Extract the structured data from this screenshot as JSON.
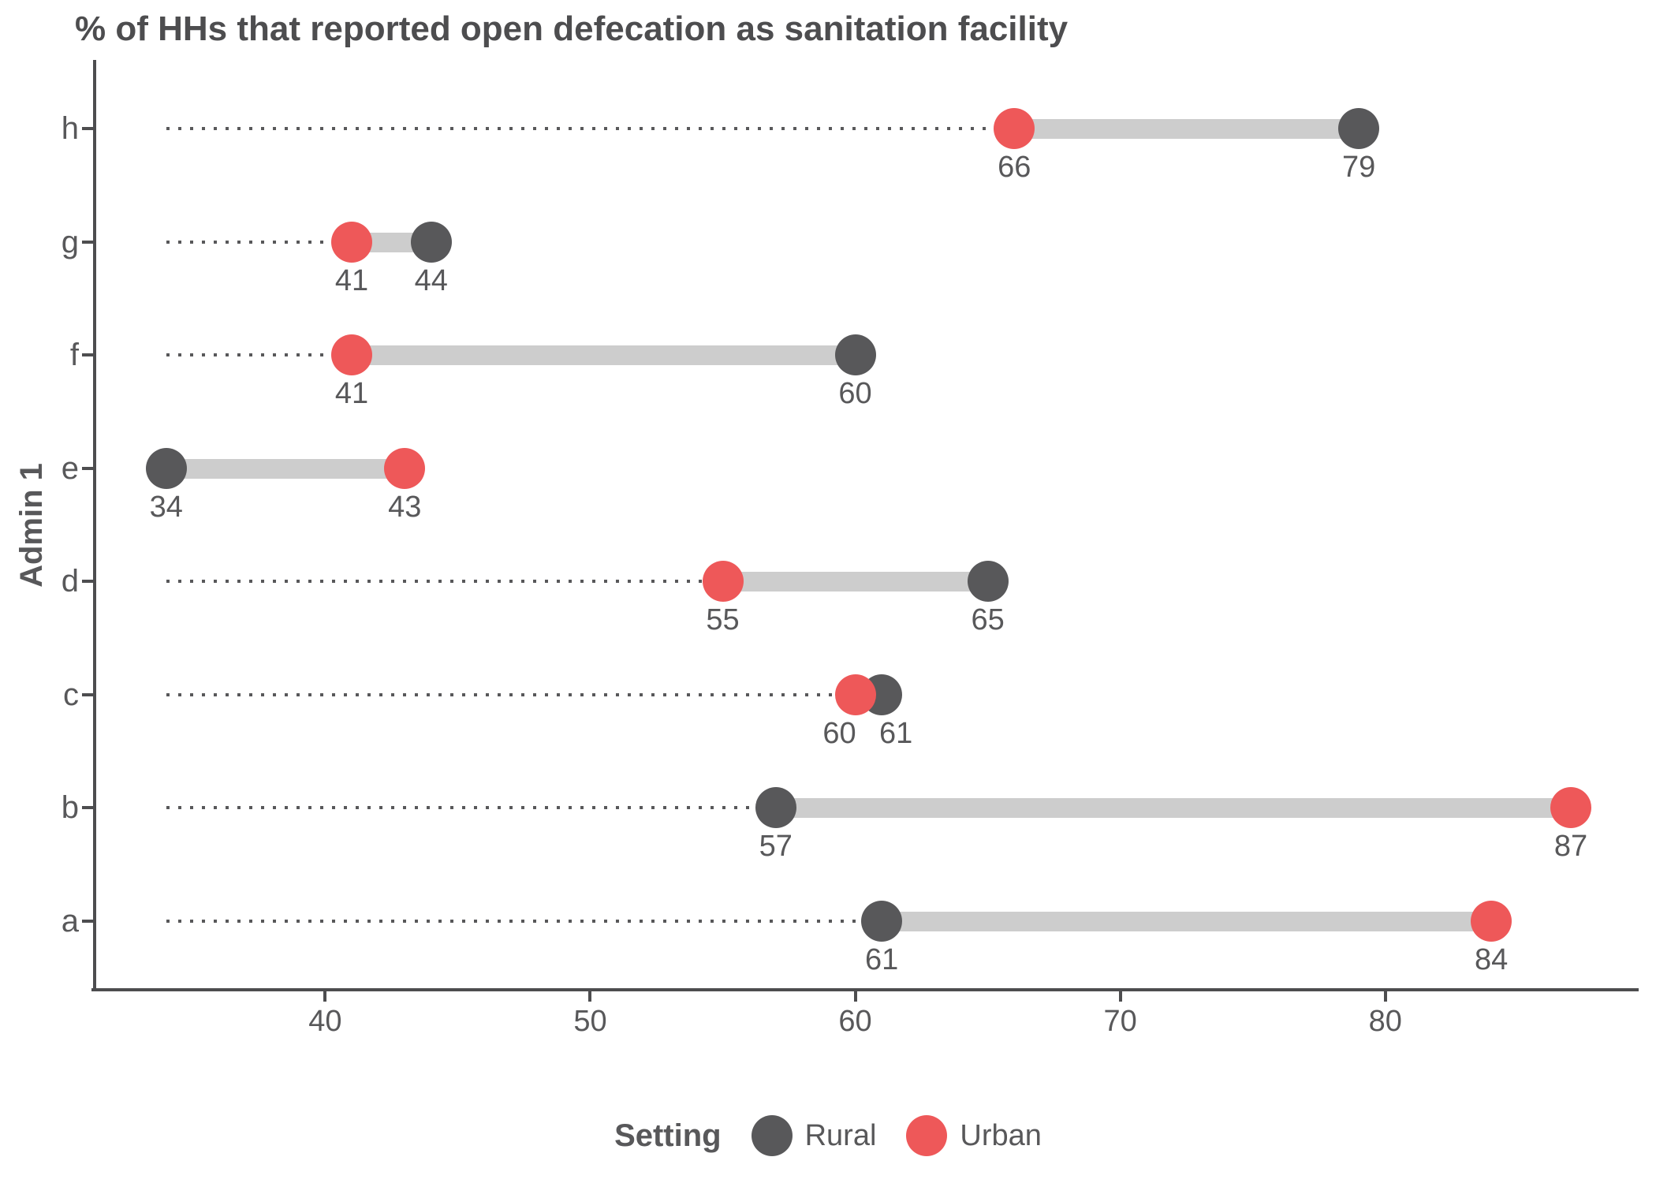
{
  "title": "% of HHs that reported open defecation as sanitation facility",
  "y_axis_label": "Admin 1",
  "legend": {
    "title": "Setting",
    "items": [
      {
        "label": "Rural",
        "color": "#58585a"
      },
      {
        "label": "Urban",
        "color": "#ee5859"
      }
    ]
  },
  "colors": {
    "rural": "#58585a",
    "urban": "#ee5859",
    "connector_bar": "#cdcdcd",
    "leader_dots": "#58585a",
    "axis": "#4d4d4f",
    "text": "#58585a",
    "title_text": "#4d4d4f"
  },
  "chart_data": {
    "type": "dumbbell",
    "title": "% of HHs that reported open defecation as sanitation facility",
    "xlabel": "",
    "ylabel": "Admin 1",
    "legend_position": "bottom",
    "x_axis": {
      "ticks": [
        40,
        50,
        60,
        70,
        80
      ],
      "domain": [
        31.3,
        89.5
      ]
    },
    "leader_start_value": 34,
    "series_names": [
      "Rural",
      "Urban"
    ],
    "rows_top_to_bottom": [
      {
        "category": "h",
        "rural": 79,
        "urban": 66
      },
      {
        "category": "g",
        "rural": 44,
        "urban": 41
      },
      {
        "category": "f",
        "rural": 60,
        "urban": 41
      },
      {
        "category": "e",
        "rural": 34,
        "urban": 43
      },
      {
        "category": "d",
        "rural": 65,
        "urban": 55
      },
      {
        "category": "c",
        "rural": 61,
        "urban": 60,
        "label_dx": {
          "rural": 18,
          "urban": -20
        }
      },
      {
        "category": "b",
        "rural": 57,
        "urban": 87
      },
      {
        "category": "a",
        "rural": 61,
        "urban": 84
      }
    ]
  }
}
